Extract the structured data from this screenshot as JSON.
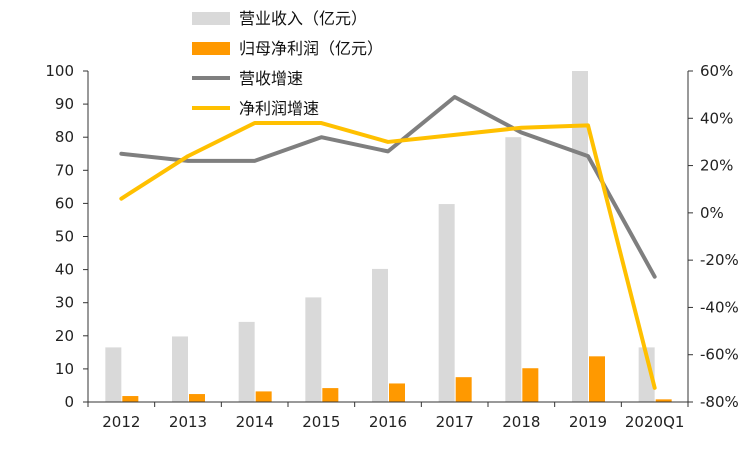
{
  "chart_data": {
    "type": "bar+line",
    "categories": [
      "2012",
      "2013",
      "2014",
      "2015",
      "2016",
      "2017",
      "2018",
      "2019",
      "2020Q1"
    ],
    "y_left": {
      "ylim": [
        0,
        100
      ],
      "ticks": [
        "0",
        "10",
        "20",
        "30",
        "40",
        "50",
        "60",
        "70",
        "80",
        "90",
        "100"
      ]
    },
    "y_right": {
      "ylim": [
        -80,
        60
      ],
      "ticks": [
        "-80%",
        "-60%",
        "-40%",
        "-20%",
        "0%",
        "20%",
        "40%",
        "60%"
      ]
    },
    "grid": false,
    "legend_position": "top",
    "series": [
      {
        "name": "营业收入（亿元）",
        "kind": "bar",
        "axis": "left",
        "color": "#d9d9d9",
        "values": [
          16.5,
          19.8,
          24.2,
          31.6,
          40.2,
          59.8,
          80.0,
          100.0,
          16.5
        ]
      },
      {
        "name": "归母净利润（亿元）",
        "kind": "bar",
        "axis": "left",
        "color": "#ff9900",
        "values": [
          1.8,
          2.4,
          3.2,
          4.2,
          5.6,
          7.5,
          10.2,
          13.8,
          0.8
        ]
      },
      {
        "name": "营收增速",
        "kind": "line",
        "axis": "right",
        "color": "#7f7f7f",
        "values": [
          25,
          22,
          22,
          32,
          26,
          49,
          34,
          24,
          -27
        ]
      },
      {
        "name": "净利润增速",
        "kind": "line",
        "axis": "right",
        "color": "#ffc000",
        "values": [
          6,
          24,
          38,
          38,
          30,
          33,
          36,
          37,
          -74
        ]
      }
    ]
  }
}
